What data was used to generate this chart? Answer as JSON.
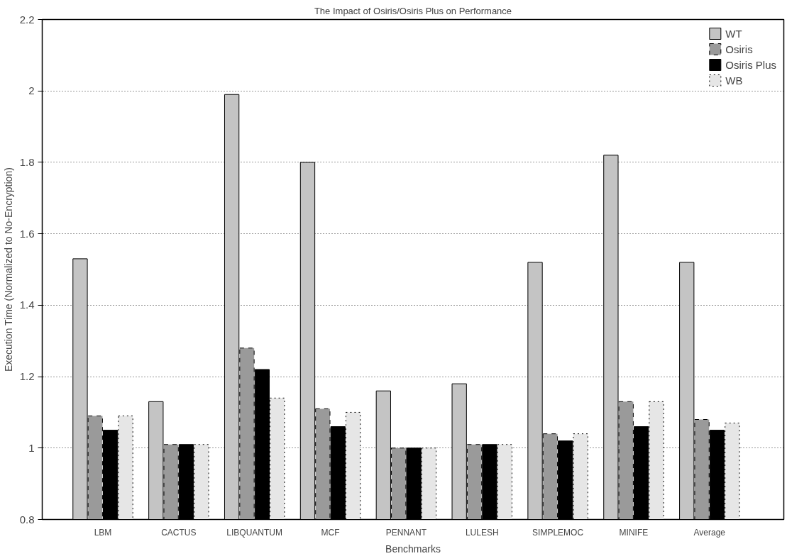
{
  "chart_data": {
    "type": "bar",
    "title": "The Impact of Osiris/Osiris Plus on Performance",
    "xlabel": "Benchmarks",
    "ylabel": "Execution Time (Normalized to No-Encryption)",
    "categories": [
      "LBM",
      "CACTUS",
      "LIBQUANTUM",
      "MCF",
      "PENNANT",
      "LULESH",
      "SIMPLEMOC",
      "MINIFE",
      "Average"
    ],
    "series": [
      {
        "name": "WT",
        "color": "#c4c4c4",
        "values": [
          1.53,
          1.13,
          1.99,
          1.8,
          1.16,
          1.18,
          1.52,
          1.82,
          1.52
        ]
      },
      {
        "name": "Osiris",
        "color": "#9a9a9a",
        "values": [
          1.09,
          1.01,
          1.28,
          1.11,
          1.0,
          1.01,
          1.04,
          1.13,
          1.08
        ]
      },
      {
        "name": "Osiris Plus",
        "color": "#000000",
        "values": [
          1.05,
          1.01,
          1.22,
          1.06,
          1.0,
          1.01,
          1.02,
          1.06,
          1.05
        ]
      },
      {
        "name": "WB",
        "color": "#e6e6e6",
        "values": [
          1.09,
          1.01,
          1.14,
          1.1,
          1.0,
          1.01,
          1.04,
          1.13,
          1.07
        ]
      }
    ],
    "ylim": [
      0.8,
      2.2
    ],
    "yticks": [
      0.8,
      1,
      1.2,
      1.4,
      1.6,
      1.8,
      2,
      2.2
    ],
    "grid": "y",
    "legend": "top right"
  }
}
